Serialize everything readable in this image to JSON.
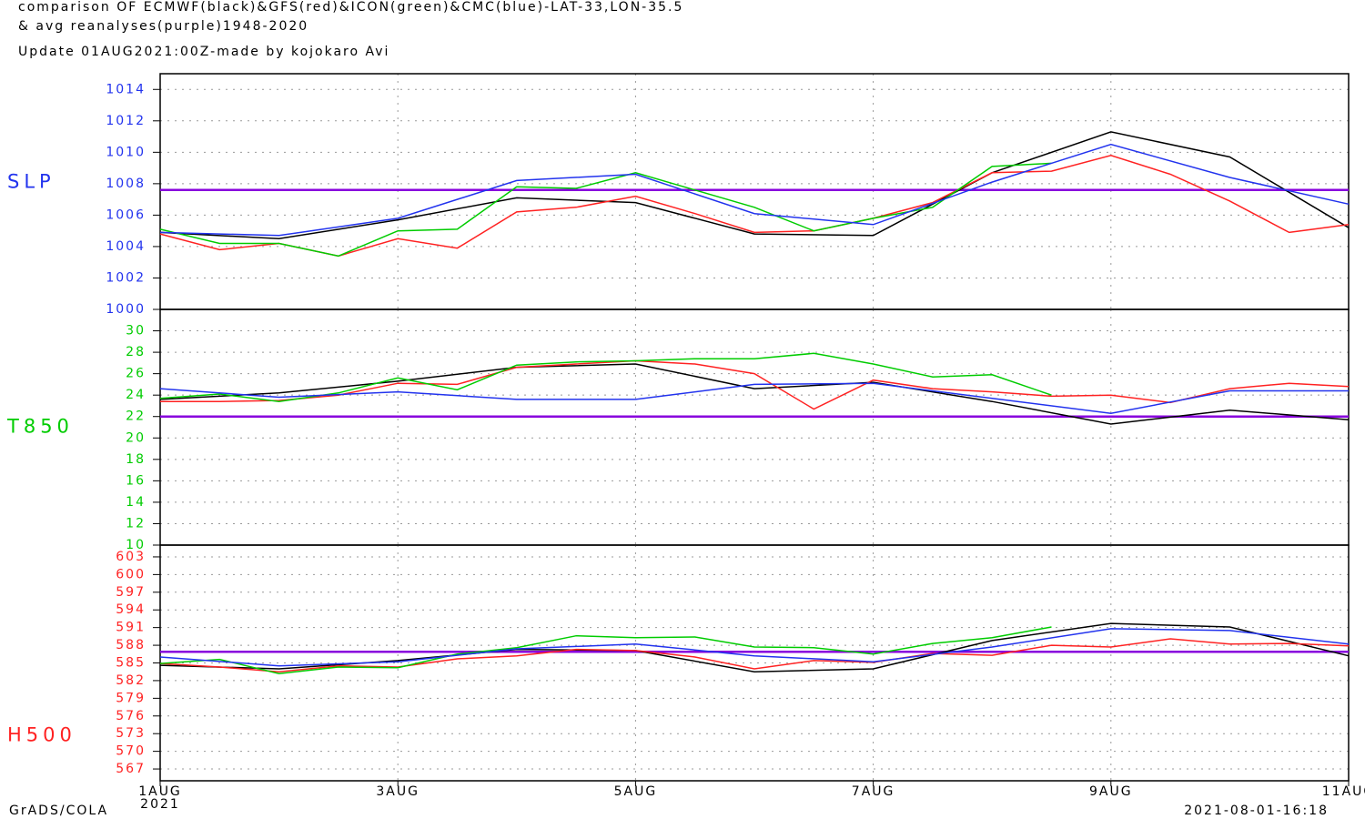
{
  "header": {
    "lines": [
      "comparison OF ECMWF(black)&GFS(red)&ICON(green)&CMC(blue)-LAT-33,LON-35.5",
      "& avg reanalyses(purple)1948-2020",
      "Update  01AUG2021:00Z-made by kojokaro Avi"
    ]
  },
  "chart_data": [
    {
      "type": "line",
      "ylabel": "SLP",
      "label_color": "#2233ee",
      "grid": true,
      "xlim": [
        1,
        11
      ],
      "xticks": [
        1,
        3,
        5,
        7,
        9,
        11
      ],
      "ylim": [
        1000,
        1015
      ],
      "yticks": [
        1000,
        1002,
        1004,
        1006,
        1008,
        1010,
        1012,
        1014
      ],
      "series": [
        {
          "color": "#8800dd",
          "x": [
            1,
            11
          ],
          "values": [
            1007.6,
            1007.6
          ]
        },
        {
          "color": "#000000",
          "x": [
            1,
            2,
            3,
            4,
            5,
            6,
            7,
            8,
            9,
            10,
            11
          ],
          "values": [
            1004.9,
            1004.5,
            1005.7,
            1007.1,
            1006.8,
            1004.8,
            1004.7,
            1008.7,
            1011.3,
            1009.7,
            1005.2
          ]
        },
        {
          "color": "#ff2222",
          "x": [
            1,
            1.5,
            2,
            2.5,
            3,
            3.5,
            4,
            4.5,
            5,
            5.5,
            6,
            6.5,
            7,
            7.5,
            8,
            8.5,
            9,
            9.5,
            10,
            10.5,
            11
          ],
          "values": [
            1004.8,
            1003.8,
            1004.2,
            1003.4,
            1004.5,
            1003.9,
            1006.2,
            1006.5,
            1007.2,
            1006.1,
            1004.9,
            1005.0,
            1005.8,
            1006.8,
            1008.7,
            1008.8,
            1009.8,
            1008.6,
            1006.9,
            1004.9,
            1005.4
          ]
        },
        {
          "color": "#00cc00",
          "x": [
            1,
            1.5,
            2,
            2.5,
            3,
            3.5,
            4,
            4.5,
            5,
            5.5,
            6,
            6.5,
            7,
            7.5,
            8,
            8.5
          ],
          "values": [
            1005.1,
            1004.2,
            1004.2,
            1003.4,
            1005.0,
            1005.1,
            1007.8,
            1007.7,
            1008.7,
            1007.6,
            1006.5,
            1005.0,
            1005.8,
            1006.5,
            1009.1,
            1009.3
          ]
        },
        {
          "color": "#2233ee",
          "x": [
            1,
            2,
            3,
            4,
            5,
            6,
            7,
            8,
            9,
            10,
            11
          ],
          "values": [
            1004.9,
            1004.7,
            1005.8,
            1008.2,
            1008.6,
            1006.1,
            1005.4,
            1008.1,
            1010.5,
            1008.4,
            1006.7
          ]
        }
      ]
    },
    {
      "type": "line",
      "ylabel": "T850",
      "label_color": "#00cc00",
      "grid": true,
      "xlim": [
        1,
        11
      ],
      "xticks": [
        1,
        3,
        5,
        7,
        9,
        11
      ],
      "ylim": [
        10,
        32
      ],
      "yticks": [
        10,
        12,
        14,
        16,
        18,
        20,
        22,
        24,
        26,
        28,
        30
      ],
      "series": [
        {
          "color": "#8800dd",
          "x": [
            1,
            11
          ],
          "values": [
            22.0,
            22.0
          ]
        },
        {
          "color": "#000000",
          "x": [
            1,
            2,
            3,
            4,
            5,
            6,
            7,
            8,
            9,
            10,
            11
          ],
          "values": [
            23.6,
            24.2,
            25.3,
            26.6,
            26.9,
            24.6,
            25.2,
            23.4,
            21.3,
            22.6,
            21.7
          ]
        },
        {
          "color": "#ff2222",
          "x": [
            1,
            1.5,
            2,
            2.5,
            3,
            3.5,
            4,
            4.5,
            5,
            5.5,
            6,
            6.5,
            7,
            7.5,
            8,
            8.5,
            9,
            9.5,
            10,
            10.5,
            11
          ],
          "values": [
            23.4,
            23.4,
            23.5,
            24.0,
            25.1,
            25.0,
            26.6,
            26.9,
            27.2,
            26.9,
            26.0,
            22.7,
            25.4,
            24.6,
            24.3,
            23.9,
            24.0,
            23.3,
            24.6,
            25.1,
            24.8
          ]
        },
        {
          "color": "#00cc00",
          "x": [
            1,
            1.5,
            2,
            2.5,
            3,
            3.5,
            4,
            4.5,
            5,
            5.5,
            6,
            6.5,
            7,
            7.5,
            8,
            8.5
          ],
          "values": [
            23.7,
            24.1,
            23.4,
            24.2,
            25.6,
            24.5,
            26.8,
            27.1,
            27.2,
            27.4,
            27.4,
            27.9,
            26.9,
            25.7,
            25.9,
            24.0
          ]
        },
        {
          "color": "#2233ee",
          "x": [
            1,
            2,
            3,
            4,
            5,
            6,
            7,
            8,
            9,
            10,
            11
          ],
          "values": [
            24.6,
            23.8,
            24.3,
            23.6,
            23.6,
            25.0,
            25.1,
            23.7,
            22.3,
            24.4,
            24.4
          ]
        }
      ]
    },
    {
      "type": "line",
      "ylabel": "H500",
      "label_color": "#ff2222",
      "grid": true,
      "xlim": [
        1,
        11
      ],
      "xticks": [
        {
          "value": 1,
          "label": "1AUG"
        },
        {
          "value": 3,
          "label": "3AUG"
        },
        {
          "value": 5,
          "label": "5AUG"
        },
        {
          "value": 7,
          "label": "7AUG"
        },
        {
          "value": 9,
          "label": "9AUG"
        },
        {
          "value": 11,
          "label": "11AUG"
        }
      ],
      "xlabel": "2021",
      "ylim": [
        565,
        605
      ],
      "yticks": [
        567,
        570,
        573,
        576,
        579,
        582,
        585,
        588,
        591,
        594,
        597,
        600,
        603
      ],
      "series": [
        {
          "color": "#8800dd",
          "x": [
            1,
            11
          ],
          "values": [
            586.9,
            586.9
          ]
        },
        {
          "color": "#000000",
          "x": [
            1,
            2,
            3,
            4,
            5,
            6,
            7,
            8,
            9,
            10,
            11
          ],
          "values": [
            584.6,
            584.0,
            585.4,
            587.3,
            587.1,
            583.5,
            584.0,
            588.8,
            591.7,
            591.1,
            586.2
          ]
        },
        {
          "color": "#ff2222",
          "x": [
            1,
            1.5,
            2,
            2.5,
            3,
            3.5,
            4,
            4.5,
            5,
            5.5,
            6,
            6.5,
            7,
            7.5,
            8,
            8.5,
            9,
            9.5,
            10,
            10.5,
            11
          ],
          "values": [
            584.9,
            584.3,
            583.5,
            584.5,
            584.3,
            585.7,
            586.2,
            587.3,
            587.1,
            586.0,
            584.0,
            585.4,
            585.1,
            586.6,
            586.3,
            588.0,
            587.7,
            589.1,
            588.2,
            588.3,
            587.9
          ]
        },
        {
          "color": "#00cc00",
          "x": [
            1,
            1.5,
            2,
            2.5,
            3,
            3.5,
            4,
            4.5,
            5,
            5.5,
            6,
            6.5,
            7,
            7.5,
            8,
            8.5
          ],
          "values": [
            584.9,
            585.6,
            583.2,
            584.3,
            584.2,
            586.5,
            587.6,
            589.6,
            589.3,
            589.4,
            587.7,
            587.6,
            586.5,
            588.3,
            589.3,
            591.1
          ]
        },
        {
          "color": "#2233ee",
          "x": [
            1,
            2,
            3,
            4,
            5,
            6,
            7,
            8,
            9,
            10,
            11
          ],
          "values": [
            586.0,
            584.5,
            585.2,
            587.4,
            588.2,
            586.2,
            585.2,
            587.7,
            590.8,
            590.5,
            588.2
          ]
        }
      ]
    }
  ],
  "footer": {
    "left": "GrADS/COLA",
    "right": "2021-08-01-16:18"
  }
}
